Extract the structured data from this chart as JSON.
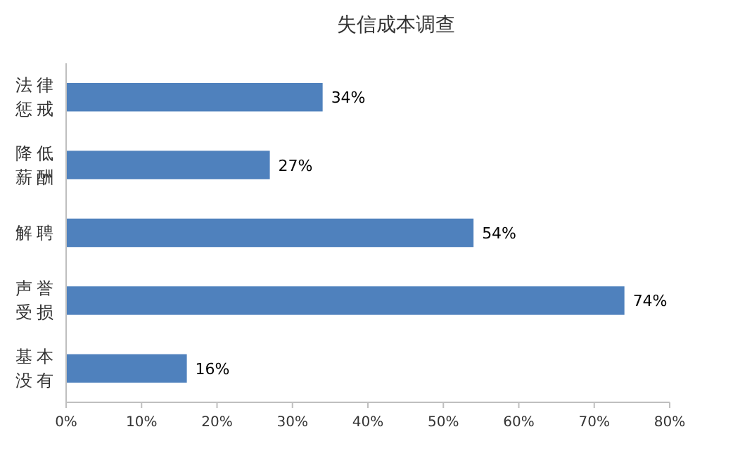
{
  "chart_data": {
    "type": "bar",
    "orientation": "horizontal",
    "title": "失信成本调查",
    "categories": [
      "法律惩戒",
      "降低薪酬",
      "解聘",
      "声誉受损",
      "基本没有"
    ],
    "values": [
      34,
      27,
      54,
      74,
      16
    ],
    "value_labels": [
      "34%",
      "27%",
      "54%",
      "74%",
      "16%"
    ],
    "color": "#4f81bd",
    "xlim": [
      0,
      80
    ],
    "xticks": [
      {
        "value": 0,
        "label": "0%"
      },
      {
        "value": 10,
        "label": "10%"
      },
      {
        "value": 20,
        "label": "20%"
      },
      {
        "value": 30,
        "label": "30%"
      },
      {
        "value": 40,
        "label": "40%"
      },
      {
        "value": 50,
        "label": "50%"
      },
      {
        "value": 60,
        "label": "60%"
      },
      {
        "value": 70,
        "label": "70%"
      },
      {
        "value": 80,
        "label": "80%"
      }
    ],
    "grid": false
  }
}
